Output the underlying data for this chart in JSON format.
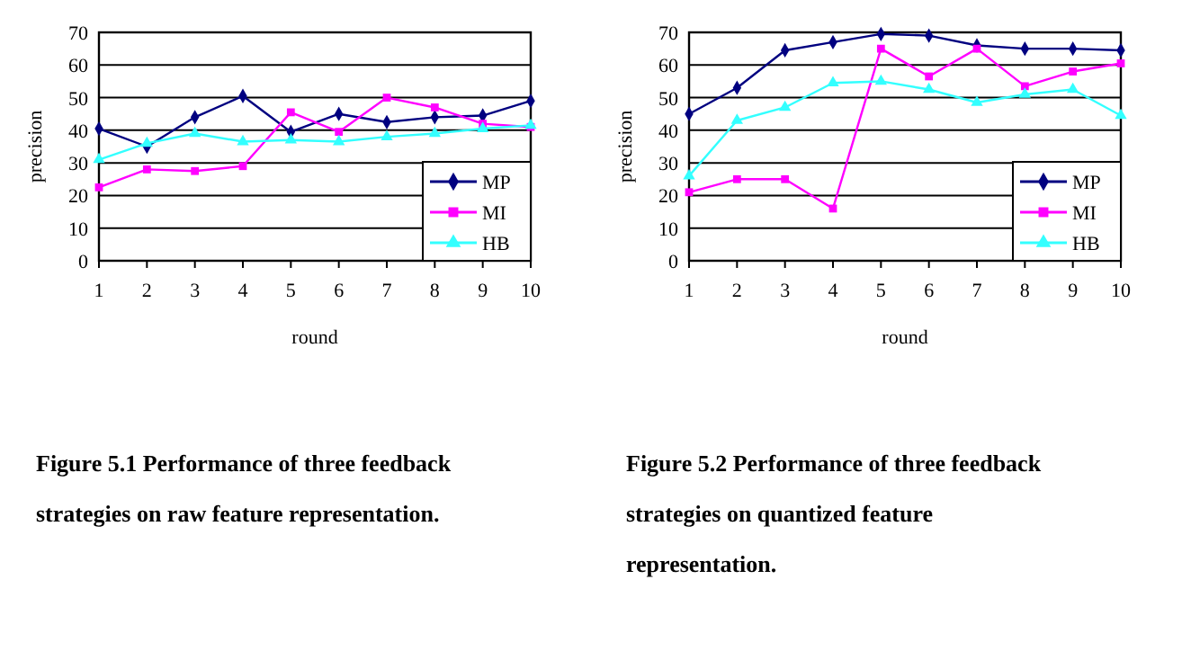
{
  "chart_data": [
    {
      "type": "line",
      "title": "Figure 5.1 Performance of three feedback strategies on raw feature representation.",
      "xlabel": "round",
      "ylabel": "precision",
      "x": [
        1,
        2,
        3,
        4,
        5,
        6,
        7,
        8,
        9,
        10
      ],
      "xlim": [
        1,
        10
      ],
      "xticks": [
        1,
        2,
        3,
        4,
        5,
        6,
        7,
        8,
        9,
        10
      ],
      "ylim": [
        0,
        70
      ],
      "yticks": [
        0,
        10,
        20,
        30,
        40,
        50,
        60,
        70
      ],
      "grid": "y",
      "legend": "bottom right",
      "series": [
        {
          "name": "MP",
          "color": "#000080",
          "marker": "diamond",
          "values": [
            40.5,
            35,
            44,
            50.5,
            39.5,
            45,
            42.5,
            44,
            44.5,
            49
          ]
        },
        {
          "name": "MI",
          "color": "#ff00ff",
          "marker": "square",
          "values": [
            22.5,
            28,
            27.5,
            29,
            45.5,
            39.5,
            50,
            47,
            42,
            41
          ]
        },
        {
          "name": "HB",
          "color": "#33ffff",
          "marker": "triangle",
          "values": [
            31,
            36,
            39,
            36.5,
            37,
            36.5,
            38,
            39,
            40.5,
            41.5
          ]
        }
      ]
    },
    {
      "type": "line",
      "title": "Figure 5.2 Performance of three feedback strategies on quantized feature representation.",
      "xlabel": "round",
      "ylabel": "precision",
      "x": [
        1,
        2,
        3,
        4,
        5,
        6,
        7,
        8,
        9,
        10
      ],
      "xlim": [
        1,
        10
      ],
      "xticks": [
        1,
        2,
        3,
        4,
        5,
        6,
        7,
        8,
        9,
        10
      ],
      "ylim": [
        0,
        70
      ],
      "yticks": [
        0,
        10,
        20,
        30,
        40,
        50,
        60,
        70
      ],
      "grid": "y",
      "legend": "bottom right",
      "series": [
        {
          "name": "MP",
          "color": "#000080",
          "marker": "diamond",
          "values": [
            45,
            53,
            64.5,
            67,
            69.5,
            69,
            66,
            65,
            65,
            64.5
          ]
        },
        {
          "name": "MI",
          "color": "#ff00ff",
          "marker": "square",
          "values": [
            21,
            25,
            25,
            16,
            65,
            56.5,
            65,
            53.5,
            58,
            60.5
          ]
        },
        {
          "name": "HB",
          "color": "#33ffff",
          "marker": "triangle",
          "values": [
            26,
            43,
            47,
            54.5,
            55,
            52.5,
            48.5,
            51,
            52.5,
            44.5
          ]
        }
      ]
    }
  ]
}
